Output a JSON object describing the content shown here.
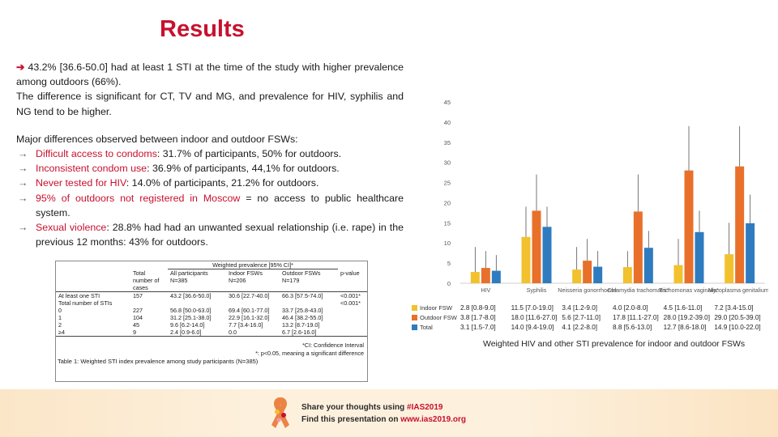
{
  "title": "Results",
  "summary": {
    "arrow": "➔",
    "line1": "43.2% [36.6-50.0] had at least 1 STI at the time of the study with higher prevalence among outdoors (66%).",
    "line2": "The difference is significant for CT, TV and MG, and prevalence for HIV, syphilis and NG tend to be higher."
  },
  "differences": {
    "heading": "Major differences observed between indoor and outdoor FSWs:",
    "items": [
      {
        "bullet": "→",
        "highlight": "Difficult access to condoms",
        "rest": ": 31.7% of participants, 50% for outdoors."
      },
      {
        "bullet": "→",
        "highlight": "Inconsistent condom use",
        "rest": ": 36.9% of participants, 44,1% for outdoors."
      },
      {
        "bullet": "→",
        "highlight": "Never tested for HIV",
        "rest": ": 14.0% of participants, 21.2% for outdoors."
      },
      {
        "bullet": "→",
        "highlight": "95% of outdoors not registered in Moscow",
        "rest": " = no access to public healthcare system."
      },
      {
        "bullet": "→",
        "highlight": "Sexual violence",
        "rest": ": 28.8% had had an unwanted sexual relationship (i.e. rape) in the previous 12 months: 43% for outdoors."
      }
    ]
  },
  "table": {
    "group_header": "Weighted prevalence [95% CI]*",
    "headers": [
      "",
      "Total number of cases",
      "All participants N=385",
      "Indoor FSWs N=206",
      "Outdoor FSWs N=179",
      "p-value"
    ],
    "rows": [
      [
        "At least one STI",
        "157",
        "43.2 [36.6-50.0]",
        "30.6 [22.7-40.0]",
        "66.3 [57.5-74.0]",
        "<0.001*"
      ],
      [
        "Total number of STIs",
        "",
        "",
        "",
        "",
        "<0.001*"
      ],
      [
        "0",
        "227",
        "56.8 [50.0-63.0]",
        "69.4 [60.1-77.0]",
        "33.7 [25.8-43.0]",
        ""
      ],
      [
        "1",
        "104",
        "31.2 [25.1-38.0]",
        "22.9 [16.1-32.0]",
        "46.4 [38.2-55.0]",
        ""
      ],
      [
        "2",
        "45",
        "9.6 [6.2-14.0]",
        "7.7 [3.4-16.0]",
        "13.2 [8.7-19.0]",
        ""
      ],
      [
        "≥4",
        "9",
        "2.4 [0.9-6.0]",
        "0.0",
        "6.7 [2.6-16.0]",
        ""
      ]
    ],
    "note1": "*CI: Confidence Interval",
    "note2": "*: p<0.05, meaning a significant difference",
    "caption": "Table 1: Weighted STI index prevalence among study participants (N=385)"
  },
  "chart_data": {
    "type": "bar",
    "categories": [
      "HIV",
      "Syphilis",
      "Neisseria gonorrhoeae",
      "Chlamydia trachomatis*",
      "Trichomonas vaginalis*",
      "Mycoplasma genitalium*"
    ],
    "ylim": [
      0,
      45
    ],
    "yticks": [
      0,
      5,
      10,
      15,
      20,
      25,
      30,
      35,
      40,
      45
    ],
    "colors": {
      "indoor": "#f2c12e",
      "outdoor": "#e8702a",
      "total": "#2f7bbf"
    },
    "series": [
      {
        "name": "Indoor FSW",
        "values": [
          2.8,
          11.5,
          3.4,
          4.0,
          4.5,
          7.2
        ],
        "labels": [
          "2.8 [0.8-9.0]",
          "11.5 [7.0-19.0]",
          "3.4 [1.2-9.0]",
          "4.0 [2.0-8.0]",
          "4.5 [1.6-11.0]",
          "7.2 [3.4-15.0]"
        ]
      },
      {
        "name": "Outdoor FSW",
        "values": [
          3.8,
          18.0,
          5.6,
          17.8,
          28.0,
          29.0
        ],
        "labels": [
          "3.8 [1.7-8.0]",
          "18.0 [11.6-27.0]",
          "5.6 [2.7-11.0]",
          "17.8 [11.1-27.0]",
          "28.0 [19.2-39.0]",
          "29.0 [20.5-39.0]"
        ]
      },
      {
        "name": "Total",
        "values": [
          3.1,
          14.0,
          4.1,
          8.8,
          12.7,
          14.9
        ],
        "labels": [
          "3.1 [1.5-7.0]",
          "14.0 [9.4-19.0]",
          "4.1 [2.2-8.0]",
          "8.8 [5.6-13.0]",
          "12.7 [8.6-18.0]",
          "14.9 [10.0-22.0]"
        ]
      }
    ],
    "errors_upper": [
      [
        9.0,
        19.0,
        9.0,
        8.0,
        11.0,
        15.0
      ],
      [
        8.0,
        27.0,
        11.0,
        27.0,
        39.0,
        39.0
      ],
      [
        7.0,
        19.0,
        8.0,
        13.0,
        18.0,
        22.0
      ]
    ],
    "caption": "Weighted HIV and other STI prevalence for indoor and outdoor FSWs"
  },
  "footer": {
    "line1_prefix": "Share your thoughts using ",
    "line1_tag": "#IAS2019",
    "line2_prefix": "Find this presentation on ",
    "line2_url": "www.ias2019.org"
  }
}
